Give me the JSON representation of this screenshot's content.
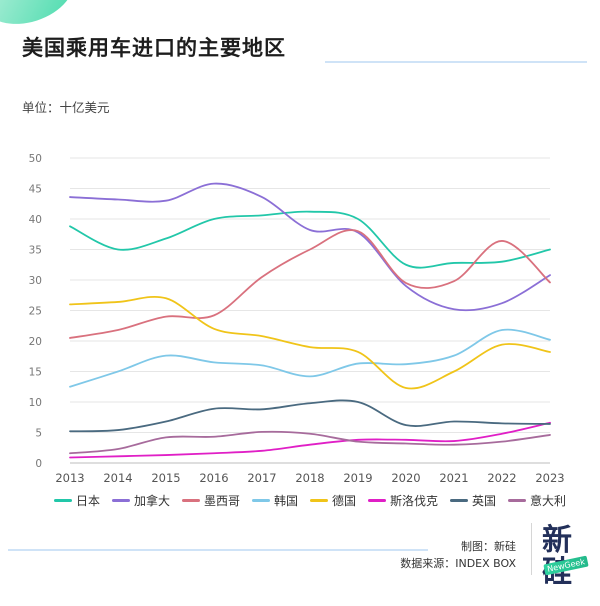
{
  "header": {
    "title": "美国乘用车进口的主要地区",
    "unit": "单位：十亿美元"
  },
  "footer": {
    "credit_maker": "制图：新硅",
    "credit_source": "数据来源：INDEX BOX",
    "logo_text": "新硅",
    "logo_sub": "NewGeek"
  },
  "chart_data": {
    "type": "line",
    "x": [
      "2013",
      "2014",
      "2015",
      "2016",
      "2017",
      "2018",
      "2019",
      "2020",
      "2021",
      "2022",
      "2023"
    ],
    "ylim": [
      0,
      50
    ],
    "yticks": [
      0,
      5,
      10,
      15,
      20,
      25,
      30,
      35,
      40,
      45,
      50
    ],
    "grid": true,
    "legend": "bottom",
    "series": [
      {
        "name": "日本",
        "color": "#22c7a9",
        "values": [
          38.8,
          35.0,
          36.8,
          40.0,
          40.6,
          41.2,
          40.0,
          32.5,
          32.8,
          33.0,
          35.0
        ]
      },
      {
        "name": "加拿大",
        "color": "#8b6fd6",
        "values": [
          43.6,
          43.2,
          43.0,
          45.8,
          43.6,
          38.2,
          37.8,
          29.0,
          25.2,
          26.2,
          30.8
        ]
      },
      {
        "name": "墨西哥",
        "color": "#d9717e",
        "values": [
          20.5,
          21.8,
          24.0,
          24.2,
          30.5,
          35.0,
          38.0,
          29.5,
          29.8,
          36.4,
          29.6
        ]
      },
      {
        "name": "韩国",
        "color": "#7fc8e8",
        "values": [
          12.5,
          15.0,
          17.6,
          16.5,
          16.0,
          14.2,
          16.3,
          16.2,
          17.6,
          21.8,
          20.2
        ]
      },
      {
        "name": "德国",
        "color": "#f0c419",
        "values": [
          26.0,
          26.4,
          27.0,
          22.0,
          20.8,
          19.0,
          18.2,
          12.3,
          15.0,
          19.4,
          18.2
        ]
      },
      {
        "name": "斯洛伐克",
        "color": "#e01fc6",
        "values": [
          0.9,
          1.1,
          1.3,
          1.6,
          2.0,
          3.0,
          3.8,
          3.8,
          3.6,
          4.8,
          6.6
        ]
      },
      {
        "name": "英国",
        "color": "#4a6a80",
        "values": [
          5.2,
          5.4,
          6.8,
          8.9,
          8.8,
          9.8,
          10.0,
          6.2,
          6.8,
          6.5,
          6.4
        ]
      },
      {
        "name": "意大利",
        "color": "#a76b9c",
        "values": [
          1.6,
          2.3,
          4.2,
          4.3,
          5.1,
          4.8,
          3.5,
          3.2,
          3.0,
          3.5,
          4.6
        ]
      }
    ]
  }
}
